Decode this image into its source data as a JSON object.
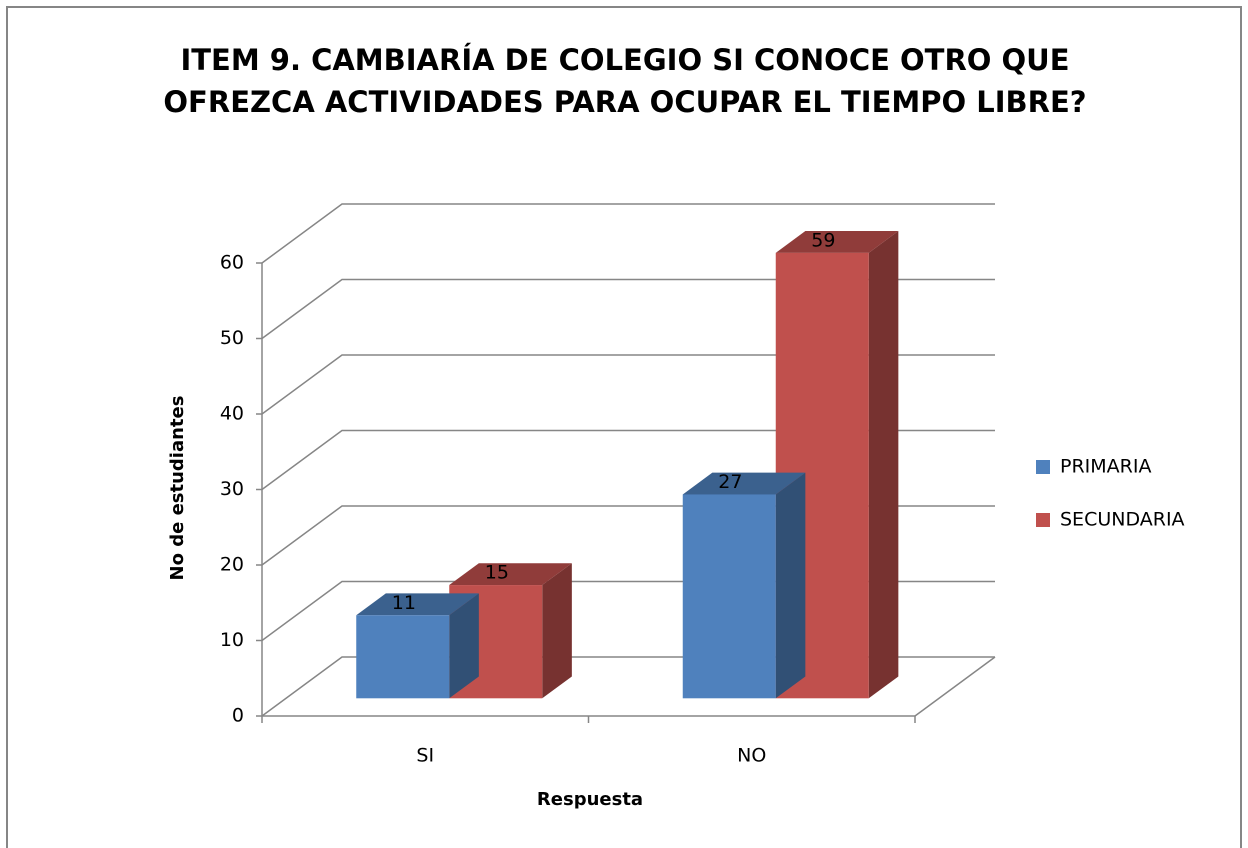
{
  "chart_data": {
    "type": "bar3d",
    "title": [
      "ITEM 9. CAMBIARÍA DE COLEGIO SI CONOCE OTRO QUE",
      "OFREZCA ACTIVIDADES PARA OCUPAR EL TIEMPO LIBRE?"
    ],
    "categories": [
      "SI",
      "NO"
    ],
    "series": [
      {
        "name": "PRIMARIA",
        "color": "#4f81bd",
        "values": [
          11,
          27
        ]
      },
      {
        "name": "SECUNDARIA",
        "color": "#c0504d",
        "values": [
          15,
          59
        ]
      }
    ],
    "xlabel": "Respuesta",
    "ylabel": "No de estudiantes",
    "ylim": [
      0,
      60
    ],
    "yticks": [
      0,
      10,
      20,
      30,
      40,
      50,
      60
    ],
    "grid": true,
    "legend": "right"
  }
}
